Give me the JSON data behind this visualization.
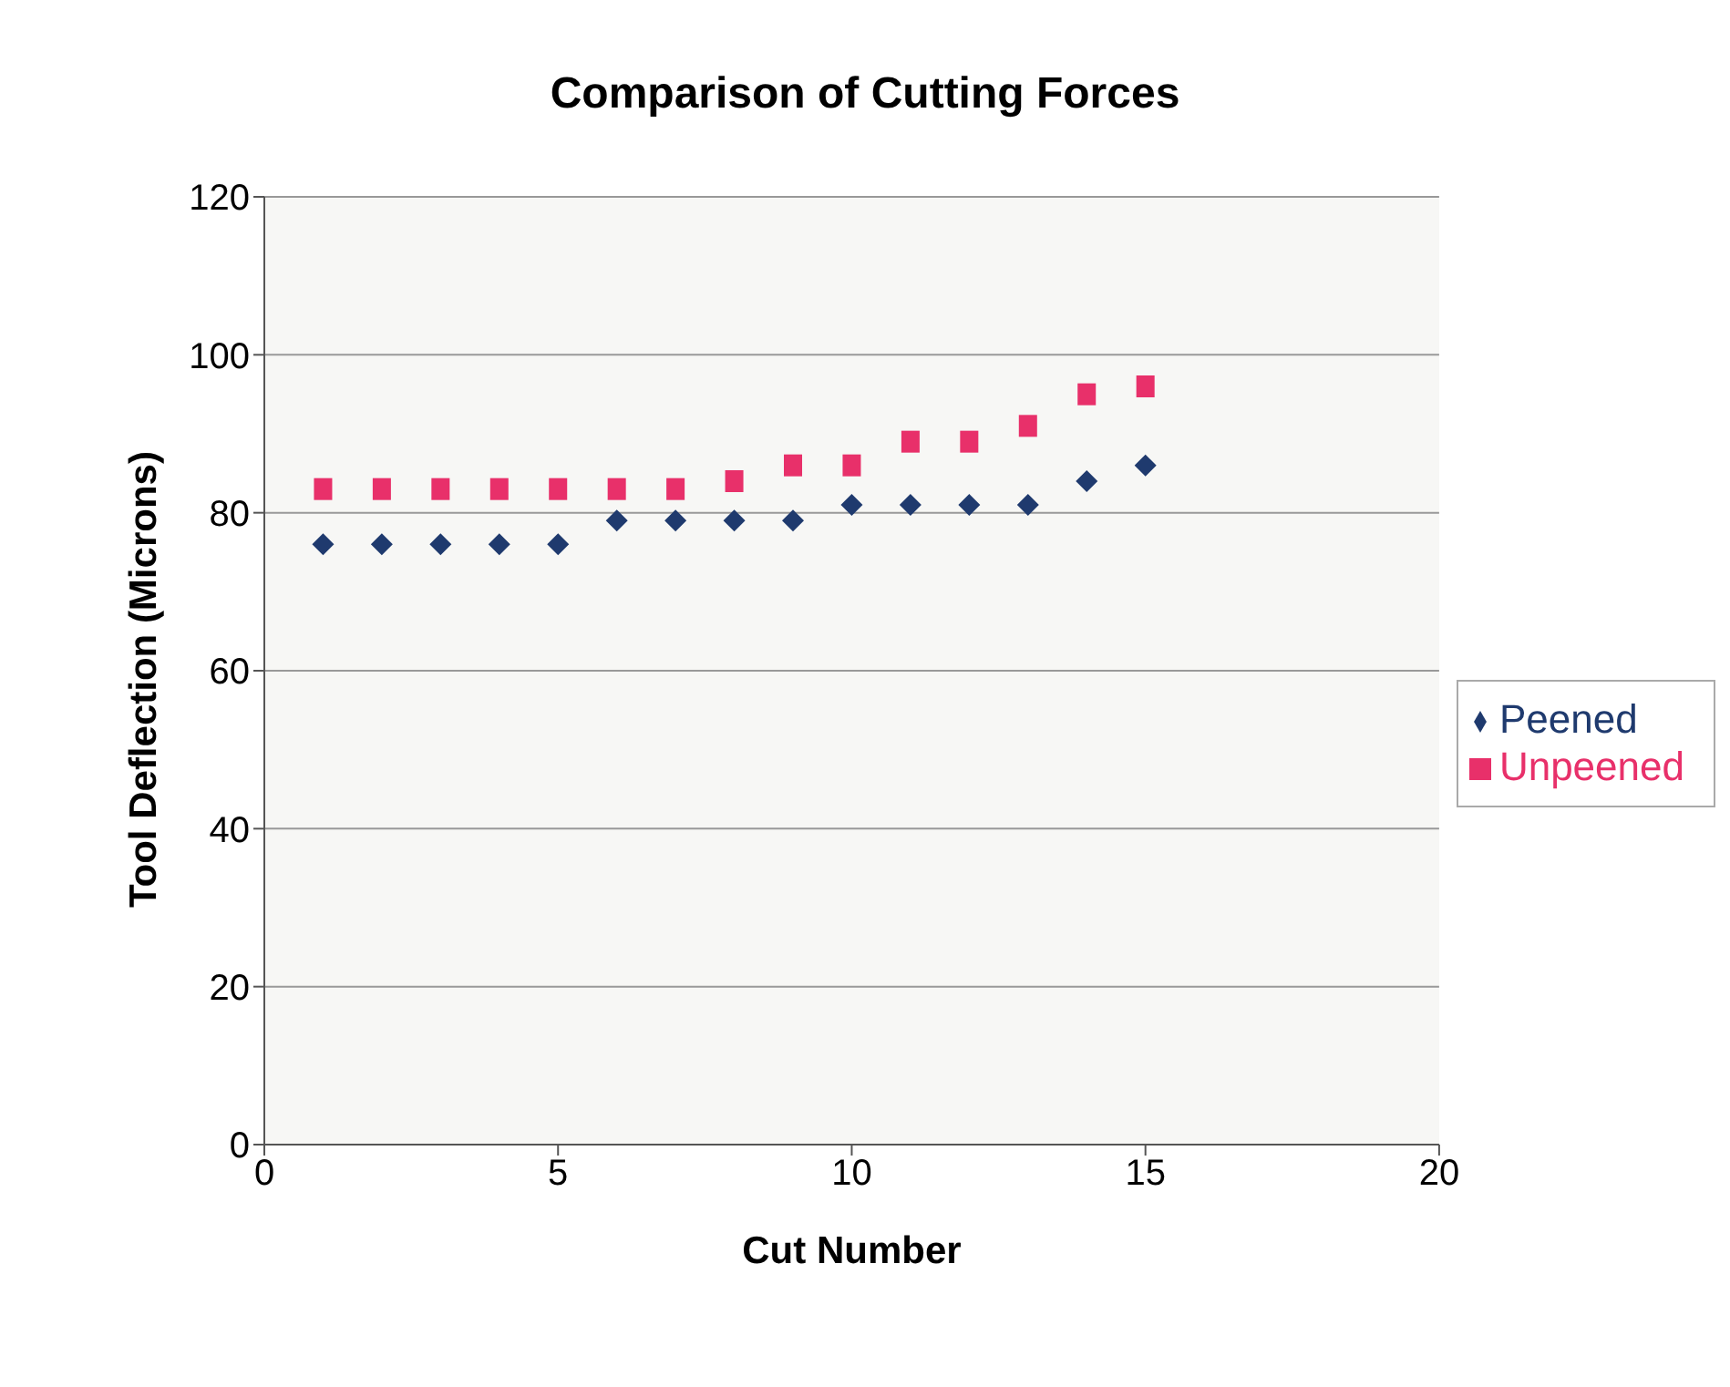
{
  "chart_data": {
    "type": "scatter",
    "title": "Comparison of Cutting Forces",
    "xlabel": "Cut Number",
    "ylabel": "Tool Deflection (Microns)",
    "x": [
      1,
      2,
      3,
      4,
      5,
      6,
      7,
      8,
      9,
      10,
      11,
      12,
      13,
      14,
      15
    ],
    "series": [
      {
        "name": "Peened",
        "color": "#1f3a6e",
        "marker": "diamond",
        "values": [
          76,
          76,
          76,
          76,
          76,
          79,
          79,
          79,
          79,
          81,
          81,
          81,
          81,
          84,
          86
        ]
      },
      {
        "name": "Unpeened",
        "color": "#e8306a",
        "marker": "square",
        "values": [
          83,
          83,
          83,
          83,
          83,
          83,
          83,
          84,
          86,
          86,
          89,
          89,
          91,
          95,
          96
        ]
      }
    ],
    "xlim": [
      0,
      20
    ],
    "xticks": [
      0,
      5,
      10,
      15,
      20
    ],
    "ylim": [
      0,
      120
    ],
    "yticks": [
      0,
      20,
      40,
      60,
      80,
      100,
      120
    ],
    "grid": "y",
    "legend": "right"
  }
}
